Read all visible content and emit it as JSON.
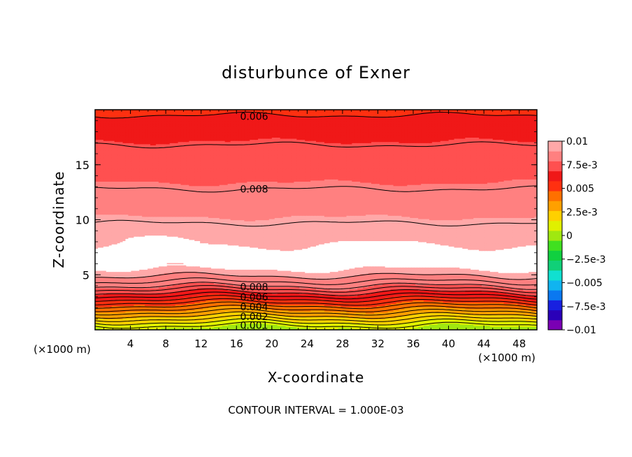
{
  "chart_data": {
    "type": "heatmap",
    "title": "disturbunce of Exner",
    "xlabel": "X-coordinate",
    "ylabel": "Z-coordinate",
    "x_unit_left": "(×1000 m)",
    "x_unit_right": "(×1000 m)",
    "xlim": [
      0,
      50
    ],
    "ylim": [
      0,
      20
    ],
    "x_ticks": [
      "4",
      "8",
      "12",
      "16",
      "20",
      "24",
      "28",
      "32",
      "36",
      "40",
      "44",
      "48"
    ],
    "y_ticks": [
      "5",
      "10",
      "15"
    ],
    "footer": "CONTOUR INTERVAL = 1.000E-03",
    "colorbar": {
      "range": [
        -0.01,
        0.01
      ],
      "labels": [
        "0.01",
        "7.5e-3",
        "0.005",
        "2.5e-3",
        "0",
        "−2.5e-3",
        "−0.005",
        "−7.5e-3",
        "−0.01"
      ],
      "colors": [
        "#7a00b4",
        "#2a00b8",
        "#1820e0",
        "#0a78f0",
        "#10b4f0",
        "#10e0d0",
        "#10d078",
        "#10d040",
        "#40e020",
        "#a0e810",
        "#e0f000",
        "#ffd000",
        "#ffa000",
        "#ff7000",
        "#ff3010",
        "#f01818",
        "#ff5050",
        "#ff8080",
        "#ffa8a8"
      ]
    },
    "contour_labels": [
      {
        "text": "0.006",
        "x": 18,
        "z": 19.4
      },
      {
        "text": "0.008",
        "x": 18,
        "z": 12.8
      },
      {
        "text": "0.008",
        "x": 18,
        "z": 3.9
      },
      {
        "text": "0.006",
        "x": 18,
        "z": 3.0
      },
      {
        "text": "0.004",
        "x": 18,
        "z": 2.1
      },
      {
        "text": "0.002",
        "x": 18,
        "z": 1.2
      },
      {
        "text": "0.001",
        "x": 18,
        "z": 0.4
      }
    ],
    "profile": [
      {
        "z": 0.0,
        "v": 0.0
      },
      {
        "z": 0.5,
        "v": 0.001
      },
      {
        "z": 1.0,
        "v": 0.002
      },
      {
        "z": 1.5,
        "v": 0.003
      },
      {
        "z": 2.0,
        "v": 0.004
      },
      {
        "z": 2.5,
        "v": 0.005
      },
      {
        "z": 3.0,
        "v": 0.006
      },
      {
        "z": 3.5,
        "v": 0.007
      },
      {
        "z": 4.0,
        "v": 0.008
      },
      {
        "z": 5.0,
        "v": 0.009
      },
      {
        "z": 5.8,
        "v": 0.0105
      },
      {
        "z": 7.2,
        "v": 0.0105
      },
      {
        "z": 8.0,
        "v": 0.0098
      },
      {
        "z": 9.5,
        "v": 0.0092
      },
      {
        "z": 11.0,
        "v": 0.0087
      },
      {
        "z": 12.8,
        "v": 0.008
      },
      {
        "z": 14.5,
        "v": 0.0077
      },
      {
        "z": 16.8,
        "v": 0.007
      },
      {
        "z": 18.6,
        "v": 0.0062
      },
      {
        "z": 20.0,
        "v": 0.0056
      }
    ]
  }
}
